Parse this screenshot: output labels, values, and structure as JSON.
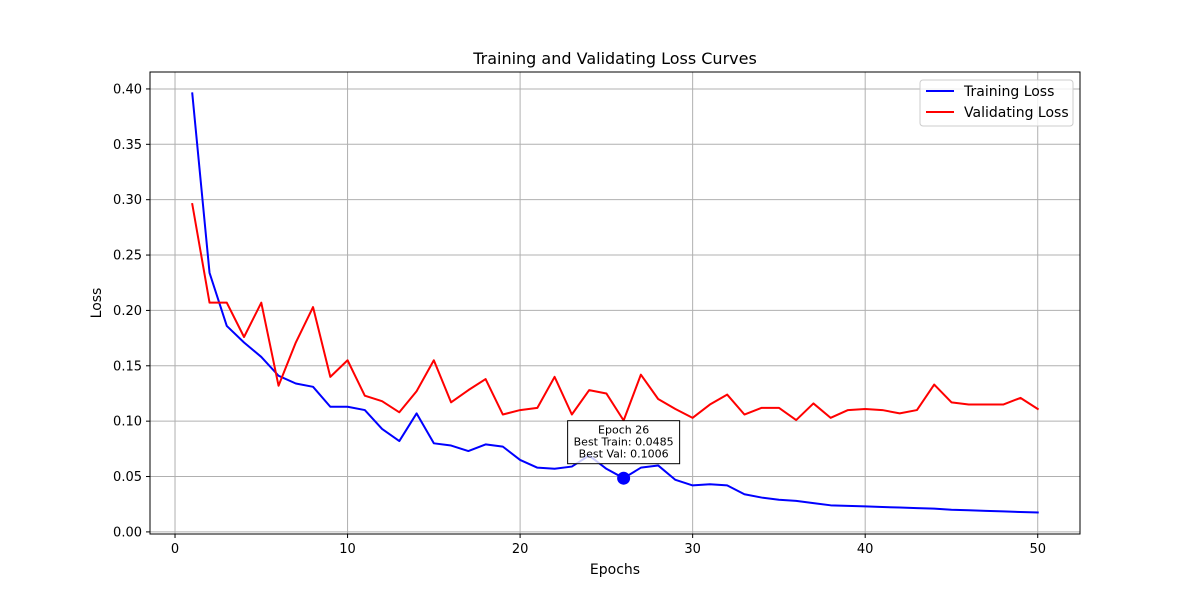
{
  "chart_data": {
    "type": "line",
    "title": "Training and Validating Loss Curves",
    "xlabel": "Epochs",
    "ylabel": "Loss",
    "xlim": [
      -1.45,
      52.45
    ],
    "ylim": [
      -0.0019,
      0.4153
    ],
    "xticks": [
      0,
      10,
      20,
      30,
      40,
      50
    ],
    "xtick_labels": [
      "0",
      "10",
      "20",
      "30",
      "40",
      "50"
    ],
    "yticks": [
      0.0,
      0.05,
      0.1,
      0.15,
      0.2,
      0.25,
      0.3,
      0.35,
      0.4
    ],
    "ytick_labels": [
      "0.00",
      "0.05",
      "0.10",
      "0.15",
      "0.20",
      "0.25",
      "0.30",
      "0.35",
      "0.40"
    ],
    "grid": true,
    "legend_position": "upper right",
    "x": [
      1,
      2,
      3,
      4,
      5,
      6,
      7,
      8,
      9,
      10,
      11,
      12,
      13,
      14,
      15,
      16,
      17,
      18,
      19,
      20,
      21,
      22,
      23,
      24,
      25,
      26,
      27,
      28,
      29,
      30,
      31,
      32,
      33,
      34,
      35,
      36,
      37,
      38,
      39,
      40,
      41,
      42,
      43,
      44,
      45,
      46,
      47,
      48,
      49,
      50
    ],
    "series": [
      {
        "name": "Training Loss",
        "color": "#0000ff",
        "values": [
          0.396,
          0.234,
          0.186,
          0.171,
          0.158,
          0.141,
          0.134,
          0.131,
          0.113,
          0.113,
          0.11,
          0.093,
          0.082,
          0.107,
          0.08,
          0.078,
          0.073,
          0.079,
          0.077,
          0.065,
          0.058,
          0.057,
          0.059,
          0.069,
          0.057,
          0.0485,
          0.058,
          0.06,
          0.047,
          0.042,
          0.043,
          0.042,
          0.034,
          0.031,
          0.029,
          0.028,
          0.026,
          0.024,
          0.0235,
          0.023,
          0.0225,
          0.022,
          0.0215,
          0.021,
          0.02,
          0.0195,
          0.019,
          0.0185,
          0.018,
          0.0175
        ]
      },
      {
        "name": "Validating Loss",
        "color": "#ff0000",
        "values": [
          0.296,
          0.207,
          0.207,
          0.176,
          0.207,
          0.132,
          0.171,
          0.203,
          0.14,
          0.155,
          0.123,
          0.118,
          0.108,
          0.127,
          0.155,
          0.117,
          0.128,
          0.138,
          0.106,
          0.11,
          0.112,
          0.14,
          0.106,
          0.128,
          0.125,
          0.1006,
          0.142,
          0.12,
          0.111,
          0.103,
          0.115,
          0.124,
          0.106,
          0.112,
          0.112,
          0.101,
          0.116,
          0.103,
          0.11,
          0.111,
          0.11,
          0.107,
          0.11,
          0.133,
          0.117,
          0.115,
          0.115,
          0.115,
          0.121,
          0.111
        ]
      }
    ],
    "best_point": {
      "x": 26,
      "y": 0.0485,
      "color": "#0000ff"
    },
    "annotation": {
      "lines": [
        "Epoch 26",
        "Best Train: 0.0485",
        "Best Val: 0.1006"
      ],
      "anchor_x": 26,
      "anchor_y": 0.081
    }
  }
}
